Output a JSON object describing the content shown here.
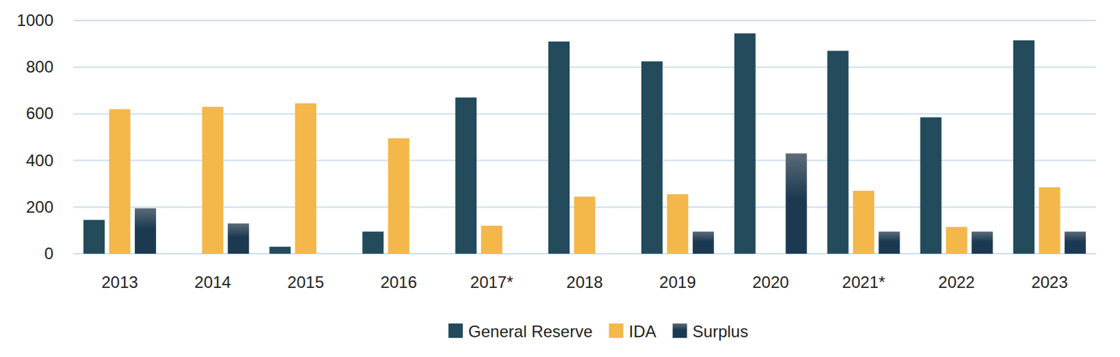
{
  "chart_data": {
    "type": "bar",
    "categories": [
      "2013",
      "2014",
      "2015",
      "2016",
      "2017*",
      "2018",
      "2019",
      "2020",
      "2021*",
      "2022",
      "2023"
    ],
    "series": [
      {
        "name": "General Reserve",
        "color": "#234b5b",
        "values": [
          145,
          null,
          30,
          95,
          670,
          910,
          825,
          945,
          870,
          585,
          915
        ]
      },
      {
        "name": "IDA",
        "color": "#f4b74a",
        "values": [
          620,
          630,
          645,
          495,
          120,
          245,
          255,
          null,
          270,
          115,
          285
        ]
      },
      {
        "name": "Surplus",
        "color": "#1b3a52",
        "values": [
          195,
          130,
          null,
          null,
          null,
          null,
          95,
          430,
          95,
          95,
          95
        ]
      }
    ],
    "ylim": [
      0,
      1000
    ],
    "yticks": [
      0,
      200,
      400,
      600,
      800,
      1000
    ],
    "grid": true,
    "legend": "bottom"
  }
}
